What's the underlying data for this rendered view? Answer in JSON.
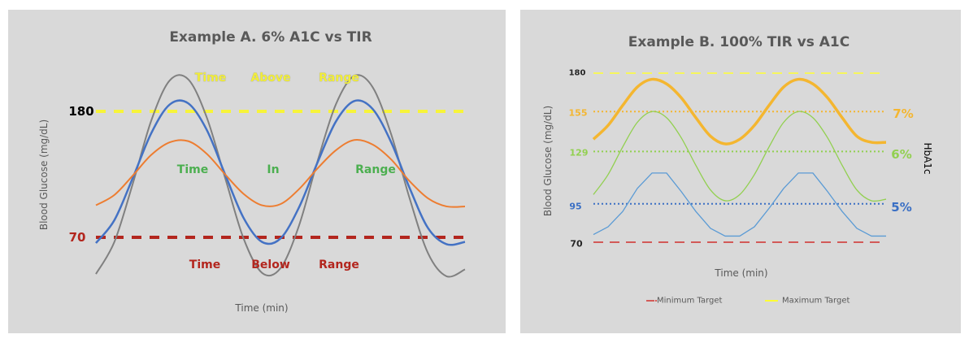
{
  "chart_data": [
    {
      "type": "line",
      "title": "Example A. 6% A1C vs TIR",
      "xlabel": "Time (min)",
      "ylabel": "Blood Glucose (mg/dL)",
      "ylim": [
        30,
        215
      ],
      "yticks": [
        {
          "value": 180,
          "label": "180",
          "color": "#000000"
        },
        {
          "value": 70,
          "label": "70",
          "color": "#b3261e"
        }
      ],
      "reference_lines": [
        {
          "value": 180,
          "color": "#f7f43a",
          "style": "dashed"
        },
        {
          "value": 70,
          "color": "#b3261e",
          "style": "dashed"
        }
      ],
      "series": [
        {
          "color": "#808080",
          "values": [
            38,
            66,
            117,
            172,
            207,
            208,
            175,
            122,
            69,
            39,
            43,
            80,
            136,
            186,
            211,
            201,
            160,
            104,
            56,
            36,
            42
          ]
        },
        {
          "color": "#4472c4",
          "values": [
            65,
            85,
            122,
            161,
            186,
            187,
            164,
            125,
            87,
            66,
            69,
            96,
            135,
            171,
            189,
            182,
            153,
            113,
            78,
            64,
            66
          ]
        },
        {
          "color": "#ed7d31",
          "values": [
            98,
            107,
            124,
            142,
            153,
            154,
            143,
            125,
            108,
            98,
            99,
            112,
            130,
            146,
            155,
            151,
            138,
            119,
            104,
            97,
            97
          ]
        }
      ],
      "annotations": {
        "above": {
          "words": [
            "Time",
            "Above",
            "Range"
          ],
          "color": "#f2ee3a"
        },
        "in": {
          "words": [
            "Time",
            "In",
            "Range"
          ],
          "color": "#4caf50"
        },
        "below": {
          "words": [
            "Time",
            "Below",
            "Range"
          ],
          "color": "#b3261e"
        }
      },
      "grid": false
    },
    {
      "type": "line",
      "title": "Example B. 100% TIR  vs  A1C",
      "xlabel": "Time (min)",
      "ylabel": "Blood Glucose (mg/dL)",
      "y2label": "HbA1c",
      "ylim": [
        65,
        185
      ],
      "yticks": [
        {
          "value": 180,
          "label": "180",
          "color": "#262626"
        },
        {
          "value": 155,
          "label": "155",
          "color": "#f4b630"
        },
        {
          "value": 129,
          "label": "129",
          "color": "#92d050"
        },
        {
          "value": 95,
          "label": "95",
          "color": "#3a6fc4"
        },
        {
          "value": 70,
          "label": "70",
          "color": "#262626"
        }
      ],
      "reference_lines": [
        {
          "value": 180,
          "color": "#ffff33",
          "style": "dashed",
          "name": "Maximum Target"
        },
        {
          "value": 155,
          "color": "#f4b630",
          "style": "dotted"
        },
        {
          "value": 129,
          "color": "#92d050",
          "style": "dotted"
        },
        {
          "value": 95,
          "color": "#3a6fc4",
          "style": "dotted"
        },
        {
          "value": 70,
          "color": "#d0312d",
          "style": "dashed",
          "name": "Minimum Target"
        }
      ],
      "series": [
        {
          "label": "7%",
          "color": "#f4b630",
          "values": [
            137,
            146,
            159,
            171,
            176,
            173,
            164,
            151,
            139,
            134,
            137,
            146,
            159,
            171,
            176,
            173,
            164,
            151,
            139,
            135,
            135
          ]
        },
        {
          "label": "6%",
          "color": "#92d050",
          "values": [
            101,
            114,
            132,
            148,
            155,
            151,
            138,
            120,
            104,
            97,
            101,
            114,
            132,
            148,
            155,
            151,
            138,
            120,
            104,
            97,
            98
          ]
        },
        {
          "label": "5%",
          "color": "#5b9bd5",
          "values": [
            75,
            80,
            90,
            105,
            115,
            115,
            103,
            90,
            79,
            74,
            74,
            80,
            92,
            105,
            115,
            115,
            103,
            90,
            79,
            74,
            74
          ]
        }
      ],
      "legend": {
        "position": "bottom",
        "entries": [
          "Minimum Target",
          "Maximum Target"
        ]
      },
      "grid": false
    }
  ]
}
